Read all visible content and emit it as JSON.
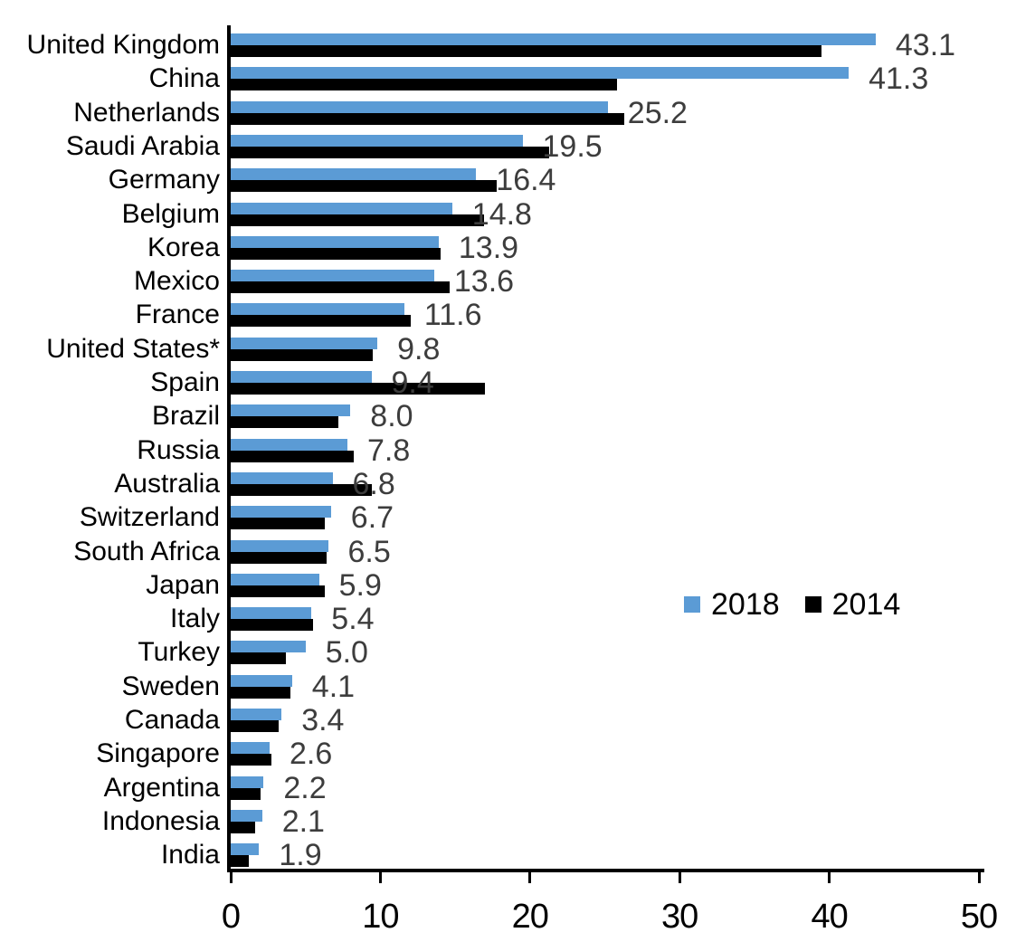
{
  "chart_data": {
    "type": "bar",
    "orientation": "horizontal",
    "title": "",
    "xlabel": "",
    "ylabel": "",
    "xlim": [
      0,
      50
    ],
    "xticks": [
      0,
      10,
      20,
      30,
      40,
      50
    ],
    "grid": false,
    "legend_position": "middle-right",
    "value_labels_series": "2018",
    "value_label_color": "#3d3d3d",
    "axis_color": "#000000",
    "categories": [
      "United Kingdom",
      "China",
      "Netherlands",
      "Saudi Arabia",
      "Germany",
      "Belgium",
      "Korea",
      "Mexico",
      "France",
      "United States*",
      "Spain",
      "Brazil",
      "Russia",
      "Australia",
      "Switzerland",
      "South Africa",
      "Japan",
      "Italy",
      "Turkey",
      "Sweden",
      "Canada",
      "Singapore",
      "Argentina",
      "Indonesia",
      "India"
    ],
    "series": [
      {
        "name": "2018",
        "color": "#5B9BD5",
        "values": [
          43.1,
          41.3,
          25.2,
          19.5,
          16.4,
          14.8,
          13.9,
          13.6,
          11.6,
          9.8,
          9.4,
          8.0,
          7.8,
          6.8,
          6.7,
          6.5,
          5.9,
          5.4,
          5.0,
          4.1,
          3.4,
          2.6,
          2.2,
          2.1,
          1.9
        ]
      },
      {
        "name": "2014",
        "color": "#000000",
        "values": [
          39.5,
          25.8,
          26.3,
          21.3,
          17.8,
          16.9,
          14.0,
          14.6,
          12.0,
          9.5,
          17.0,
          7.2,
          8.2,
          9.4,
          6.3,
          6.4,
          6.3,
          5.5,
          3.7,
          4.0,
          3.2,
          2.7,
          2.0,
          1.6,
          1.2
        ]
      }
    ],
    "value_label_format": "one-decimal"
  }
}
